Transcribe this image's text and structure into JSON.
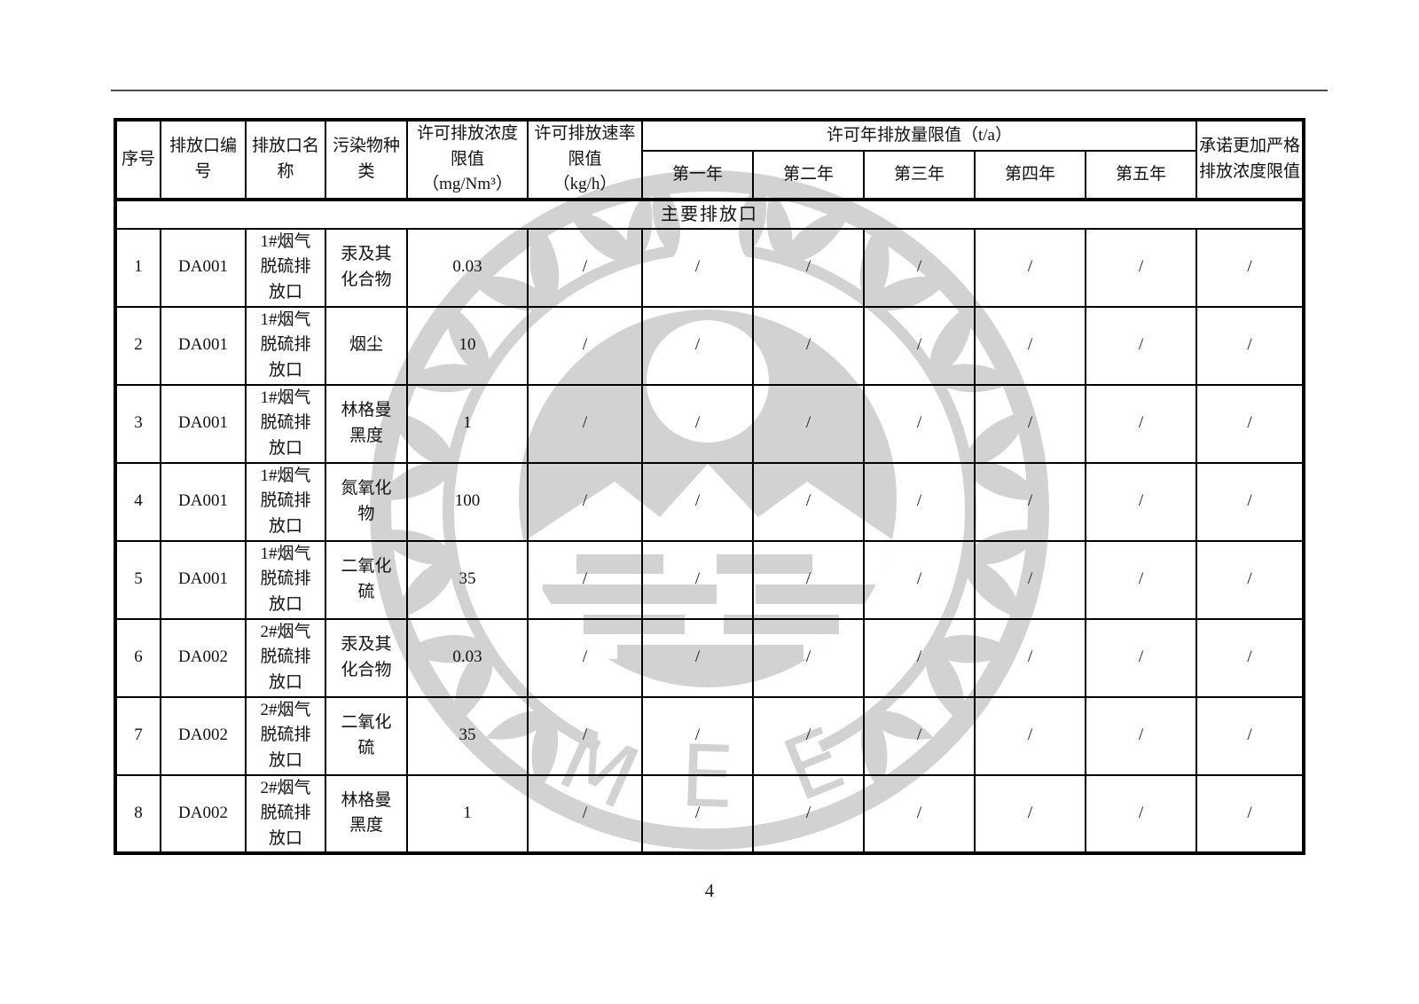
{
  "page": {
    "page_number": "4"
  },
  "watermark": {
    "color": "#d2d2d2",
    "letters": [
      "M",
      "E",
      "E"
    ]
  },
  "table": {
    "headers": {
      "serial": "序号",
      "outlet_no": "排放口编\n号",
      "outlet_name": "排放口名\n称",
      "pollutant": "污染物种\n类",
      "conc_limit": "许可排放浓度\n限值\n（mg/Nm³）",
      "rate_limit": "许可排放速率\n限值\n（kg/h）",
      "annual_limit": "许可年排放量限值（t/a）",
      "years": [
        "第一年",
        "第二年",
        "第三年",
        "第四年",
        "第五年"
      ],
      "promise": "承诺更加严格\n排放浓度限值"
    },
    "section_label": "主要排放口",
    "rows": [
      {
        "no": "1",
        "outlet_no": "DA001",
        "outlet_name": "1#烟气\n脱硫排\n放口",
        "pollutant": "汞及其\n化合物",
        "conc": "0.03",
        "rate": "/",
        "y1": "/",
        "y2": "/",
        "y3": "/",
        "y4": "/",
        "y5": "/",
        "promise": "/"
      },
      {
        "no": "2",
        "outlet_no": "DA001",
        "outlet_name": "1#烟气\n脱硫排\n放口",
        "pollutant": "烟尘",
        "conc": "10",
        "rate": "/",
        "y1": "/",
        "y2": "/",
        "y3": "/",
        "y4": "/",
        "y5": "/",
        "promise": "/"
      },
      {
        "no": "3",
        "outlet_no": "DA001",
        "outlet_name": "1#烟气\n脱硫排\n放口",
        "pollutant": "林格曼\n黑度",
        "conc": "1",
        "rate": "/",
        "y1": "/",
        "y2": "/",
        "y3": "/",
        "y4": "/",
        "y5": "/",
        "promise": "/"
      },
      {
        "no": "4",
        "outlet_no": "DA001",
        "outlet_name": "1#烟气\n脱硫排\n放口",
        "pollutant": "氮氧化\n物",
        "conc": "100",
        "rate": "/",
        "y1": "/",
        "y2": "/",
        "y3": "/",
        "y4": "/",
        "y5": "/",
        "promise": "/"
      },
      {
        "no": "5",
        "outlet_no": "DA001",
        "outlet_name": "1#烟气\n脱硫排\n放口",
        "pollutant": "二氧化\n硫",
        "conc": "35",
        "rate": "/",
        "y1": "/",
        "y2": "/",
        "y3": "/",
        "y4": "/",
        "y5": "/",
        "promise": "/"
      },
      {
        "no": "6",
        "outlet_no": "DA002",
        "outlet_name": "2#烟气\n脱硫排\n放口",
        "pollutant": "汞及其\n化合物",
        "conc": "0.03",
        "rate": "/",
        "y1": "/",
        "y2": "/",
        "y3": "/",
        "y4": "/",
        "y5": "/",
        "promise": "/"
      },
      {
        "no": "7",
        "outlet_no": "DA002",
        "outlet_name": "2#烟气\n脱硫排\n放口",
        "pollutant": "二氧化\n硫",
        "conc": "35",
        "rate": "/",
        "y1": "/",
        "y2": "/",
        "y3": "/",
        "y4": "/",
        "y5": "/",
        "promise": "/"
      },
      {
        "no": "8",
        "outlet_no": "DA002",
        "outlet_name": "2#烟气\n脱硫排\n放口",
        "pollutant": "林格曼\n黑度",
        "conc": "1",
        "rate": "/",
        "y1": "/",
        "y2": "/",
        "y3": "/",
        "y4": "/",
        "y5": "/",
        "promise": "/"
      }
    ]
  }
}
